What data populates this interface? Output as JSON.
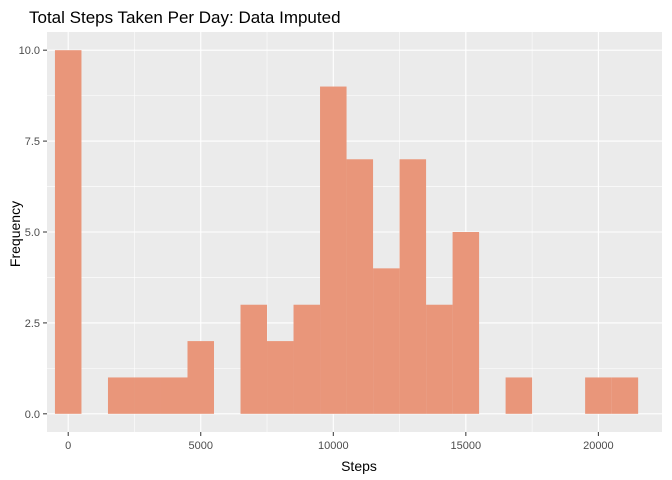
{
  "chart_data": {
    "type": "bar",
    "title": "Total Steps Taken Per Day: Data Imputed",
    "xlabel": "Steps",
    "ylabel": "Frequency",
    "bar_color": "#E9967A",
    "panel_color": "#EBEBEB",
    "grid_color": "#FFFFFF",
    "grid": true,
    "bin_width": 1000,
    "xlim": [
      -800,
      22400
    ],
    "ylim": [
      -0.5,
      10.5
    ],
    "x_ticks": [
      0,
      5000,
      10000,
      15000,
      20000
    ],
    "x_tick_labels": [
      "0",
      "5000",
      "10000",
      "15000",
      "20000"
    ],
    "y_ticks": [
      0,
      2.5,
      5,
      7.5,
      10
    ],
    "y_tick_labels": [
      "0.0",
      "2.5",
      "5.0",
      "7.5",
      "10.0"
    ],
    "bins": [
      {
        "x": 0,
        "count": 10
      },
      {
        "x": 1000,
        "count": 0
      },
      {
        "x": 2000,
        "count": 1
      },
      {
        "x": 3000,
        "count": 1
      },
      {
        "x": 4000,
        "count": 1
      },
      {
        "x": 5000,
        "count": 2
      },
      {
        "x": 6000,
        "count": 0
      },
      {
        "x": 7000,
        "count": 3
      },
      {
        "x": 8000,
        "count": 2
      },
      {
        "x": 9000,
        "count": 3
      },
      {
        "x": 10000,
        "count": 9
      },
      {
        "x": 11000,
        "count": 7
      },
      {
        "x": 12000,
        "count": 4
      },
      {
        "x": 13000,
        "count": 7
      },
      {
        "x": 14000,
        "count": 3
      },
      {
        "x": 15000,
        "count": 5
      },
      {
        "x": 16000,
        "count": 0
      },
      {
        "x": 17000,
        "count": 1
      },
      {
        "x": 18000,
        "count": 0
      },
      {
        "x": 19000,
        "count": 0
      },
      {
        "x": 20000,
        "count": 1
      },
      {
        "x": 21000,
        "count": 1
      }
    ]
  }
}
